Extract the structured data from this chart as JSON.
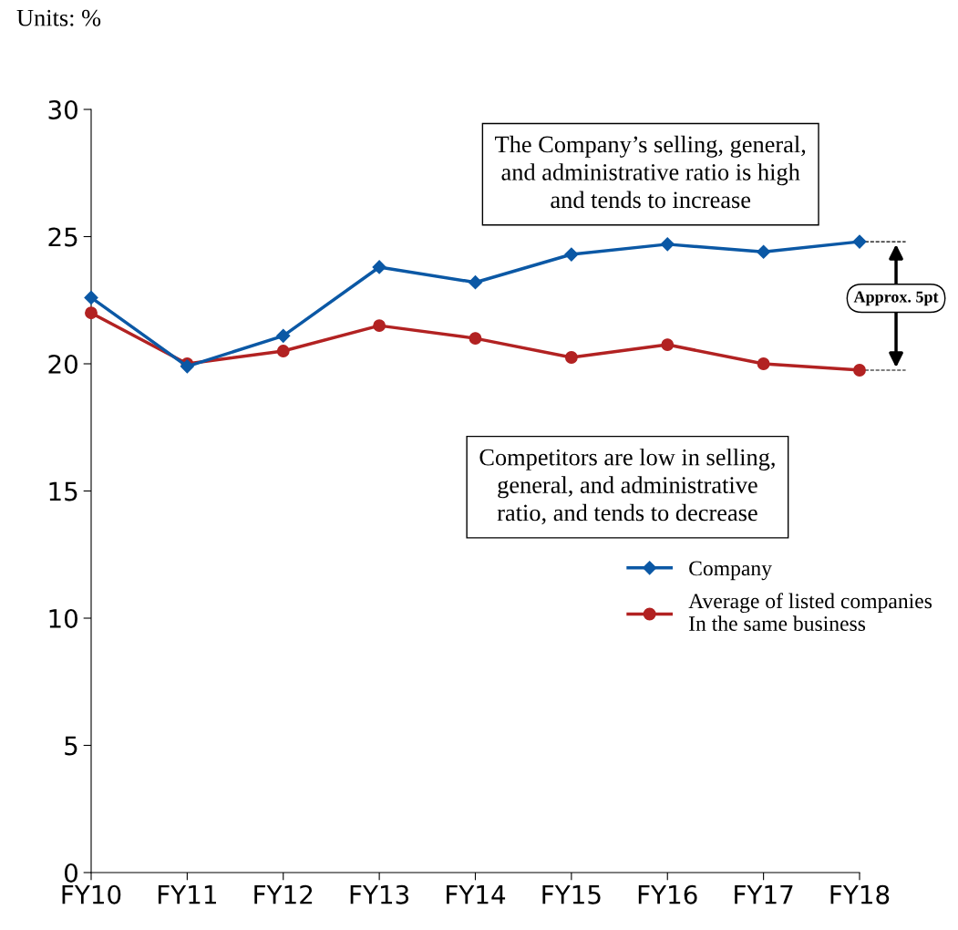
{
  "chart_data": {
    "type": "line",
    "categories": [
      "FY10",
      "FY11",
      "FY12",
      "FY13",
      "FY14",
      "FY15",
      "FY16",
      "FY17",
      "FY18"
    ],
    "series": [
      {
        "name": "Company",
        "color": "#0b58a5",
        "marker": "diamond",
        "values": [
          22.6,
          19.9,
          21.1,
          23.8,
          23.2,
          24.3,
          24.7,
          24.4,
          24.8
        ]
      },
      {
        "name": "Average of listed companies\nIn the same business",
        "color": "#b22222",
        "marker": "circle",
        "values": [
          22.0,
          20.0,
          20.5,
          21.5,
          21.0,
          20.25,
          20.75,
          20.0,
          19.75
        ]
      }
    ],
    "ylim": [
      0,
      30
    ],
    "yticks": [
      0,
      5,
      10,
      15,
      20,
      25,
      30
    ],
    "grid": false,
    "legend": "right",
    "line_style": "solid",
    "annotations": [
      "Units: %",
      "The Company’s selling, general,\nand administrative ratio is high\nand tends to increase",
      "Competitors are low in selling,\ngeneral, and administrative\nratio, and tends to decrease",
      "Approx. 5pt"
    ]
  }
}
